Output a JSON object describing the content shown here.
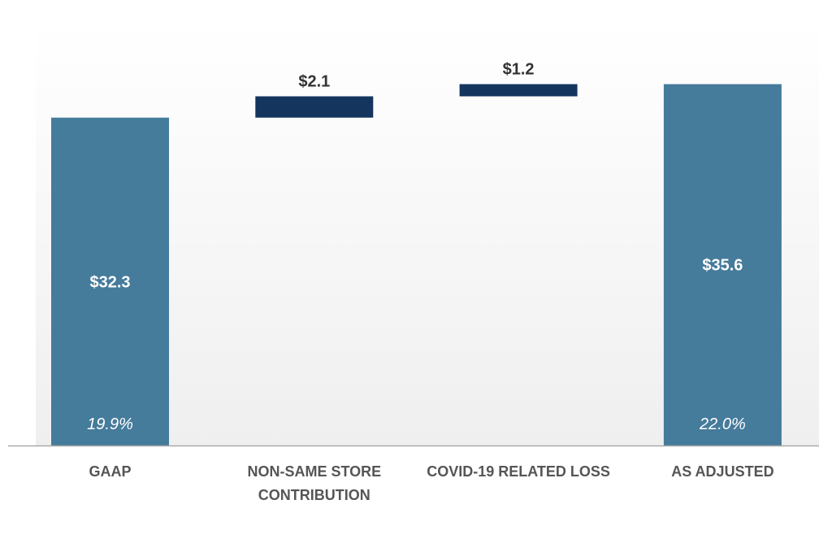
{
  "chart_data": {
    "type": "bar",
    "subtype": "waterfall",
    "title": "",
    "xlabel": "",
    "ylabel": "",
    "ylim": [
      0,
      40
    ],
    "grid": false,
    "categories": [
      "GAAP",
      "NON-SAME STORE CONTRIBUTION",
      "COVID-19 RELATED LOSS",
      "AS ADJUSTED"
    ],
    "category_lines": [
      [
        "GAAP"
      ],
      [
        "NON-SAME STORE",
        "CONTRIBUTION"
      ],
      [
        "COVID-19 RELATED LOSS"
      ],
      [
        "AS ADJUSTED"
      ]
    ],
    "values": [
      32.3,
      2.1,
      1.2,
      35.6
    ],
    "bar_kinds": [
      "total",
      "increment",
      "increment",
      "total"
    ],
    "value_labels": [
      "$32.3",
      "$2.1",
      "$1.2",
      "$35.6"
    ],
    "percent_labels": [
      "19.9%",
      "",
      "",
      "22.0%"
    ],
    "colors": {
      "total": "#457b9b",
      "increment": "#14355e",
      "background_top": "#ffffff",
      "background_bottom": "#efefef",
      "baseline": "#aaaaaa"
    }
  }
}
